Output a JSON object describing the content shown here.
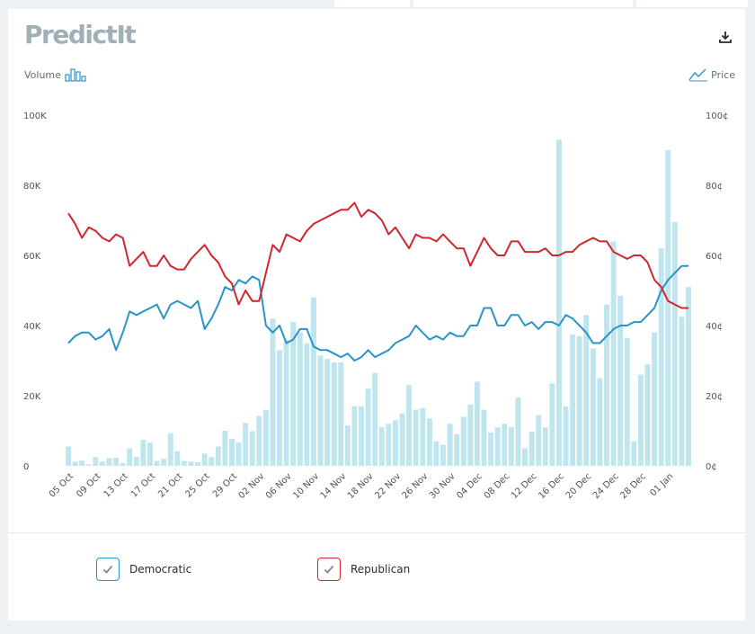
{
  "brand": {
    "logo_text": "PredictIt"
  },
  "toolbar": {
    "volume_label": "Volume",
    "price_label": "Price"
  },
  "legend": {
    "items": [
      {
        "label": "Democratic",
        "color": "#2a94c9"
      },
      {
        "label": "Republican",
        "color": "#d0262c"
      }
    ]
  },
  "colors": {
    "volume_bar": "#bfe5ef",
    "axis_text": "#4a5358"
  },
  "chart_data": {
    "type": "line",
    "title": "",
    "y_left_ticks": [
      "100K",
      "80K",
      "60K",
      "40K",
      "20K",
      "0"
    ],
    "y_right_ticks": [
      "100¢",
      "80¢",
      "60¢",
      "40¢",
      "20¢",
      "0¢"
    ],
    "ylim_volume": [
      0,
      100000
    ],
    "ylim_price": [
      0,
      100
    ],
    "x_labels": [
      "05 Oct",
      "09 Oct",
      "13 Oct",
      "17 Oct",
      "21 Oct",
      "25 Oct",
      "29 Oct",
      "02 Nov",
      "06 Nov",
      "10 Nov",
      "14 Nov",
      "18 Nov",
      "22 Nov",
      "26 Nov",
      "30 Nov",
      "04 Dec",
      "08 Dec",
      "12 Dec",
      "16 Dec",
      "20 Dec",
      "24 Dec",
      "28 Dec",
      "01 Jan"
    ],
    "volume": [
      5500,
      1200,
      1500,
      400,
      2500,
      1200,
      2200,
      2300,
      800,
      5000,
      2500,
      7400,
      6600,
      1400,
      2000,
      9300,
      4200,
      1400,
      1200,
      1000,
      3500,
      2500,
      5500,
      10000,
      7700,
      6700,
      12200,
      9900,
      14200,
      16000,
      42000,
      33000,
      36000,
      41000,
      38000,
      35000,
      48000,
      31500,
      30500,
      29500,
      29500,
      11500,
      17000,
      17000,
      22000,
      26500,
      11000,
      12000,
      13000,
      15000,
      23000,
      16000,
      16500,
      13500,
      7000,
      6000,
      12000,
      9000,
      14000,
      17500,
      24000,
      16000,
      9500,
      11000,
      12000,
      11000,
      19500,
      5000,
      9800,
      14500,
      11000,
      23500,
      93000,
      17000,
      37500,
      37000,
      43000,
      33500,
      25000,
      46000,
      64000,
      48500,
      36500,
      7000,
      26000,
      29000,
      38000,
      62000,
      90000,
      69500,
      42500,
      51000
    ],
    "series": [
      {
        "name": "Democratic",
        "values": [
          35,
          37,
          38,
          38,
          36,
          37,
          39,
          33,
          38,
          44,
          43,
          44,
          45,
          46,
          42,
          46,
          47,
          46,
          45,
          47,
          39,
          42,
          46,
          51,
          50,
          53,
          52,
          54,
          53,
          40,
          38,
          40,
          35,
          36,
          39,
          39,
          34,
          33,
          33,
          32,
          31,
          32,
          30,
          31,
          33,
          31,
          32,
          33,
          35,
          36,
          37,
          40,
          38,
          36,
          37,
          36,
          38,
          37,
          37,
          40,
          40,
          45,
          45,
          40,
          40,
          43,
          43,
          40,
          41,
          39,
          41,
          41,
          40,
          43,
          42,
          40,
          38,
          35,
          35,
          37,
          39,
          40,
          40,
          41,
          41,
          43,
          45,
          50,
          53,
          55,
          57,
          57
        ]
      },
      {
        "name": "Republican",
        "values": [
          72,
          69,
          65,
          68,
          67,
          65,
          64,
          66,
          65,
          57,
          59,
          61,
          57,
          57,
          60,
          57,
          56,
          56,
          59,
          61,
          63,
          60,
          58,
          54,
          52,
          46,
          50,
          47,
          47,
          55,
          63,
          61,
          66,
          65,
          64,
          67,
          69,
          70,
          71,
          72,
          73,
          73,
          75,
          71,
          73,
          72,
          70,
          66,
          68,
          65,
          62,
          66,
          65,
          65,
          64,
          66,
          64,
          62,
          62,
          57,
          61,
          65,
          62,
          60,
          60,
          64,
          64,
          61,
          61,
          61,
          62,
          60,
          60,
          61,
          61,
          63,
          64,
          65,
          64,
          64,
          61,
          60,
          59,
          60,
          60,
          58,
          53,
          51,
          47,
          46,
          45,
          45
        ]
      }
    ],
    "grid": false,
    "legend_position": "bottom"
  }
}
